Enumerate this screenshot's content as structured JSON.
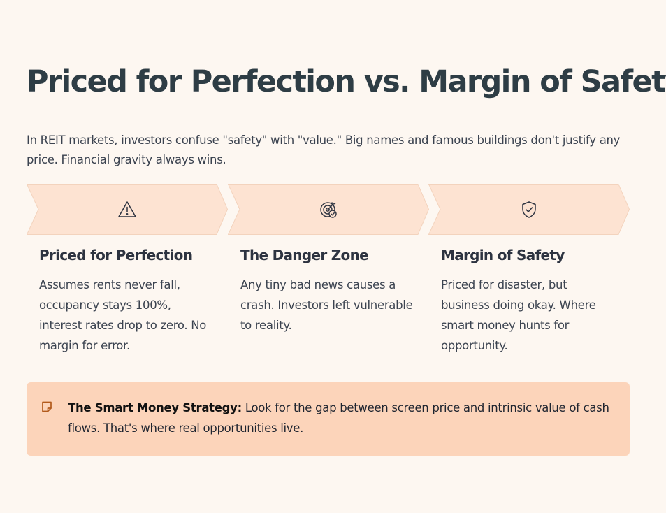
{
  "title": "Priced for Perfection vs. Margin of Safety",
  "intro": "In REIT markets, investors confuse \"safety\" with \"value.\" Big names and famous buildings don't justify any price. Financial gravity always wins.",
  "steps": [
    {
      "icon": "warning-triangle-icon",
      "heading": "Priced for Perfection",
      "body": "Assumes rents never fall, occupancy stays 100%, interest rates drop to zero. No margin for error."
    },
    {
      "icon": "target-check-icon",
      "heading": "The Danger Zone",
      "body": "Any tiny bad news causes a crash. Investors left vulnerable to reality."
    },
    {
      "icon": "shield-check-icon",
      "heading": "Margin of Safety",
      "body": "Priced for disaster, but business doing okay. Where smart money hunts for opportunity."
    }
  ],
  "callout": {
    "icon": "sticky-note-icon",
    "label": "The Smart Money Strategy:",
    "text": " Look for the gap between screen price and intrinsic value of cash flows. That's where real opportunities live."
  },
  "colors": {
    "background": "#fdf7f1",
    "chevron_fill": "#fde3d2",
    "chevron_stroke": "#f3d3bd",
    "callout_bg": "#fcd4ba",
    "callout_icon": "#b25a1c",
    "title": "#2e3d45"
  }
}
